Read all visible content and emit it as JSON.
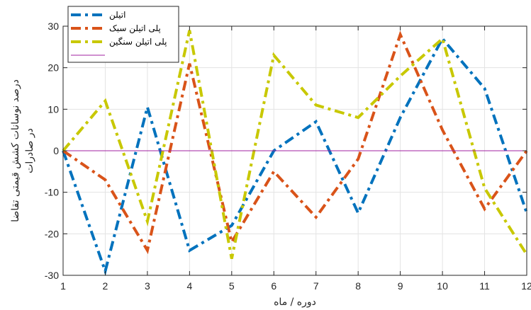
{
  "chart_data": {
    "type": "line",
    "x": [
      1,
      2,
      3,
      4,
      5,
      6,
      7,
      8,
      9,
      10,
      11,
      12
    ],
    "series": [
      {
        "name": "اتیلن",
        "color": "#0072bd",
        "style": "dash-dot",
        "values": [
          0,
          -29,
          10.5,
          -24,
          -18,
          0,
          7,
          -15,
          8,
          27,
          15,
          -15
        ]
      },
      {
        "name": "پلی اتیلن سبک",
        "color": "#d95319",
        "style": "dash-dot",
        "values": [
          0,
          -7,
          -24,
          21,
          -22,
          -5,
          -16,
          -2,
          28,
          5,
          -14,
          0
        ]
      },
      {
        "name": "پلی اتیلن سنگین",
        "color": "#c8c800",
        "style": "dash-dot",
        "values": [
          0,
          12,
          -17,
          29,
          -26,
          23,
          11,
          8,
          18,
          27,
          -9,
          -25
        ]
      },
      {
        "name": "",
        "color": "#a020a0",
        "style": "solid",
        "values": [
          0,
          0,
          0,
          0,
          0,
          0,
          0,
          0,
          0,
          0,
          0,
          0
        ]
      }
    ],
    "xlabel": "دوره / ماه",
    "ylabel_lines": [
      "درصد نوسانات کشش قیمتی تقاضا",
      "در صادرات"
    ],
    "xlim": [
      1,
      12
    ],
    "ylim": [
      -30,
      30
    ],
    "xticks": [
      "1",
      "2",
      "3",
      "4",
      "5",
      "6",
      "7",
      "8",
      "9",
      "10",
      "11",
      "12"
    ],
    "yticks": [
      "-30",
      "-20",
      "-10",
      "0",
      "10",
      "20",
      "30"
    ],
    "grid": true,
    "legend_position": "top-left"
  }
}
